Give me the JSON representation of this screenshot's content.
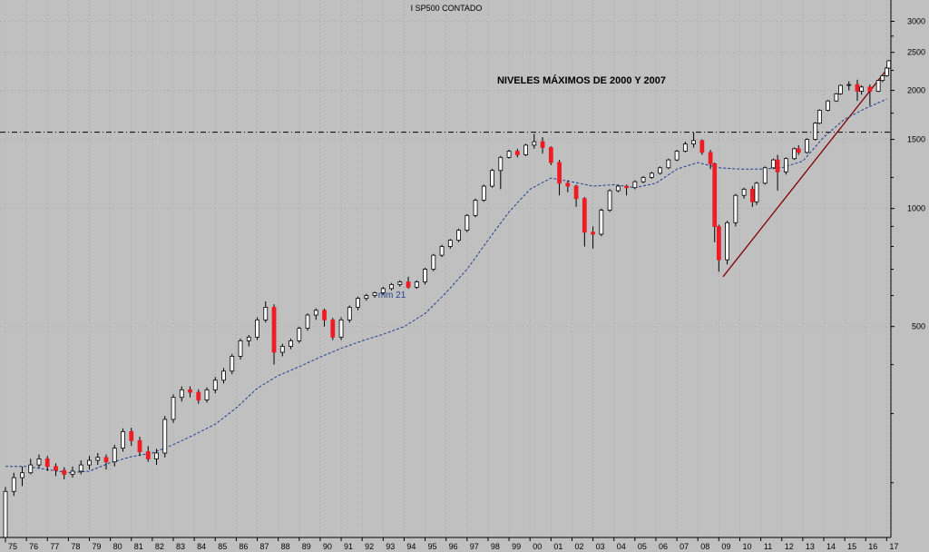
{
  "chart_data": {
    "type": "candlestick",
    "title": "I SP500 CONTADO",
    "y_scale": "log",
    "ylim": [
      145,
      3400
    ],
    "y_ticks": [
      500,
      1000,
      1500,
      2000,
      2500,
      3000
    ],
    "x_ticks": [
      "75",
      "76",
      "77",
      "78",
      "79",
      "80",
      "81",
      "82",
      "83",
      "84",
      "85",
      "86",
      "87",
      "88",
      "89",
      "90",
      "91",
      "92",
      "93",
      "94",
      "95",
      "96",
      "97",
      "98",
      "99",
      "00",
      "01",
      "02",
      "03",
      "04",
      "05",
      "06",
      "07",
      "08",
      "09",
      "10",
      "11",
      "12",
      "13",
      "14",
      "15",
      "16",
      "17"
    ],
    "x_range": [
      1975,
      2017.2
    ],
    "grid": "dotted",
    "annotations": {
      "max_level_label": "NIVELES MÁXIMOS DE 2000 Y 2007",
      "max_level_value": 1565,
      "moving_average_label": "mm 21"
    },
    "trendline": {
      "from": [
        2009.2,
        670
      ],
      "to": [
        2017.2,
        2330
      ]
    },
    "series": [
      {
        "name": "mm 21",
        "style": "dashed",
        "color": "#1f3f8f",
        "points": [
          [
            1975,
            220
          ],
          [
            1976,
            220
          ],
          [
            1977,
            216
          ],
          [
            1978,
            212
          ],
          [
            1979,
            214
          ],
          [
            1980,
            225
          ],
          [
            1981,
            233
          ],
          [
            1982,
            238
          ],
          [
            1983,
            250
          ],
          [
            1984,
            265
          ],
          [
            1985,
            282
          ],
          [
            1986,
            310
          ],
          [
            1987,
            348
          ],
          [
            1988,
            375
          ],
          [
            1989,
            395
          ],
          [
            1990,
            418
          ],
          [
            1991,
            440
          ],
          [
            1992,
            460
          ],
          [
            1993,
            478
          ],
          [
            1994,
            500
          ],
          [
            1995,
            540
          ],
          [
            1996,
            610
          ],
          [
            1997,
            700
          ],
          [
            1998,
            830
          ],
          [
            1999,
            980
          ],
          [
            2000,
            1120
          ],
          [
            2001,
            1195
          ],
          [
            2002,
            1170
          ],
          [
            2003,
            1140
          ],
          [
            2004,
            1150
          ],
          [
            2005,
            1130
          ],
          [
            2006,
            1160
          ],
          [
            2007,
            1260
          ],
          [
            2008,
            1310
          ],
          [
            2009,
            1270
          ],
          [
            2010,
            1260
          ],
          [
            2011,
            1260
          ],
          [
            2012,
            1270
          ],
          [
            2013,
            1320
          ],
          [
            2014,
            1520
          ],
          [
            2015,
            1690
          ],
          [
            2016,
            1800
          ],
          [
            2017,
            1900
          ]
        ]
      },
      {
        "name": "SP500",
        "type": "candlestick",
        "candles": [
          [
            1975.0,
            145,
            190,
            141,
            195
          ],
          [
            1975.4,
            190,
            206,
            185,
            212
          ],
          [
            1975.8,
            206,
            212,
            196,
            220
          ],
          [
            1976.2,
            212,
            222,
            210,
            230
          ],
          [
            1976.6,
            222,
            230,
            218,
            236
          ],
          [
            1977.0,
            230,
            220,
            214,
            234
          ],
          [
            1977.4,
            220,
            215,
            208,
            224
          ],
          [
            1977.8,
            215,
            210,
            204,
            219
          ],
          [
            1978.2,
            210,
            214,
            206,
            220
          ],
          [
            1978.6,
            214,
            222,
            210,
            228
          ],
          [
            1979.0,
            222,
            228,
            216,
            234
          ],
          [
            1979.4,
            228,
            232,
            222,
            238
          ],
          [
            1979.8,
            232,
            226,
            216,
            236
          ],
          [
            1980.2,
            226,
            245,
            220,
            250
          ],
          [
            1980.6,
            245,
            270,
            240,
            275
          ],
          [
            1981.0,
            270,
            256,
            248,
            276
          ],
          [
            1981.4,
            256,
            240,
            234,
            262
          ],
          [
            1981.8,
            240,
            230,
            226,
            248
          ],
          [
            1982.2,
            230,
            238,
            222,
            244
          ],
          [
            1982.6,
            238,
            290,
            232,
            296
          ],
          [
            1983.0,
            290,
            330,
            284,
            336
          ],
          [
            1983.4,
            330,
            345,
            322,
            352
          ],
          [
            1983.8,
            345,
            340,
            330,
            352
          ],
          [
            1984.2,
            340,
            325,
            318,
            346
          ],
          [
            1984.6,
            325,
            345,
            320,
            350
          ],
          [
            1985.0,
            345,
            365,
            338,
            372
          ],
          [
            1985.4,
            365,
            385,
            358,
            392
          ],
          [
            1985.8,
            385,
            420,
            378,
            426
          ],
          [
            1986.2,
            420,
            460,
            412,
            466
          ],
          [
            1986.6,
            460,
            470,
            445,
            476
          ],
          [
            1987.0,
            470,
            520,
            462,
            528
          ],
          [
            1987.4,
            520,
            560,
            512,
            580
          ],
          [
            1987.8,
            560,
            430,
            400,
            570
          ],
          [
            1988.2,
            430,
            445,
            420,
            452
          ],
          [
            1988.6,
            445,
            460,
            438,
            466
          ],
          [
            1989.0,
            460,
            495,
            454,
            500
          ],
          [
            1989.4,
            495,
            535,
            488,
            540
          ],
          [
            1989.8,
            535,
            550,
            520,
            556
          ],
          [
            1990.2,
            550,
            520,
            500,
            556
          ],
          [
            1990.6,
            520,
            470,
            462,
            526
          ],
          [
            1991.0,
            470,
            520,
            462,
            528
          ],
          [
            1991.4,
            520,
            560,
            512,
            566
          ],
          [
            1991.8,
            560,
            590,
            550,
            596
          ],
          [
            1992.2,
            590,
            600,
            582,
            606
          ],
          [
            1992.6,
            600,
            610,
            592,
            614
          ],
          [
            1993.0,
            610,
            625,
            602,
            632
          ],
          [
            1993.4,
            625,
            640,
            618,
            646
          ],
          [
            1993.8,
            640,
            650,
            632,
            656
          ],
          [
            1994.2,
            650,
            630,
            624,
            670
          ],
          [
            1994.6,
            630,
            650,
            624,
            656
          ],
          [
            1995.0,
            650,
            700,
            640,
            706
          ],
          [
            1995.4,
            700,
            760,
            692,
            766
          ],
          [
            1995.8,
            760,
            800,
            752,
            808
          ],
          [
            1996.2,
            800,
            830,
            790,
            836
          ],
          [
            1996.6,
            830,
            880,
            820,
            888
          ],
          [
            1997.0,
            880,
            960,
            870,
            968
          ],
          [
            1997.4,
            960,
            1050,
            950,
            1060
          ],
          [
            1997.8,
            1050,
            1140,
            1040,
            1150
          ],
          [
            1998.2,
            1140,
            1250,
            1130,
            1262
          ],
          [
            1998.6,
            1250,
            1350,
            1120,
            1362
          ],
          [
            1999.0,
            1350,
            1400,
            1340,
            1412
          ],
          [
            1999.4,
            1400,
            1370,
            1350,
            1420
          ],
          [
            1999.8,
            1370,
            1450,
            1360,
            1462
          ],
          [
            2000.2,
            1450,
            1480,
            1420,
            1550
          ],
          [
            2000.6,
            1480,
            1430,
            1380,
            1520
          ],
          [
            2001.0,
            1430,
            1310,
            1290,
            1440
          ],
          [
            2001.4,
            1310,
            1160,
            1080,
            1330
          ],
          [
            2001.8,
            1160,
            1140,
            1100,
            1180
          ],
          [
            2002.2,
            1140,
            1060,
            1010,
            1150
          ],
          [
            2002.6,
            1060,
            870,
            800,
            1070
          ],
          [
            2003.0,
            870,
            860,
            790,
            900
          ],
          [
            2003.4,
            860,
            990,
            850,
            1000
          ],
          [
            2003.8,
            990,
            1110,
            980,
            1120
          ],
          [
            2004.2,
            1110,
            1140,
            1100,
            1150
          ],
          [
            2004.6,
            1140,
            1130,
            1080,
            1150
          ],
          [
            2005.0,
            1130,
            1170,
            1120,
            1180
          ],
          [
            2005.4,
            1170,
            1200,
            1160,
            1210
          ],
          [
            2005.8,
            1200,
            1230,
            1190,
            1240
          ],
          [
            2006.2,
            1230,
            1270,
            1220,
            1280
          ],
          [
            2006.6,
            1270,
            1330,
            1260,
            1340
          ],
          [
            2007.0,
            1330,
            1400,
            1320,
            1410
          ],
          [
            2007.4,
            1400,
            1460,
            1390,
            1480
          ],
          [
            2007.8,
            1460,
            1490,
            1430,
            1565
          ],
          [
            2008.2,
            1490,
            1390,
            1370,
            1500
          ],
          [
            2008.6,
            1390,
            1300,
            1260,
            1410
          ],
          [
            2008.8,
            1300,
            900,
            820,
            1310
          ],
          [
            2009.0,
            900,
            740,
            690,
            910
          ],
          [
            2009.4,
            740,
            920,
            720,
            930
          ],
          [
            2009.8,
            920,
            1080,
            900,
            1090
          ],
          [
            2010.2,
            1080,
            1120,
            1060,
            1130
          ],
          [
            2010.6,
            1120,
            1040,
            1010,
            1140
          ],
          [
            2010.8,
            1040,
            1160,
            1020,
            1170
          ],
          [
            2011.2,
            1160,
            1270,
            1150,
            1280
          ],
          [
            2011.6,
            1270,
            1330,
            1260,
            1340
          ],
          [
            2011.8,
            1330,
            1240,
            1110,
            1370
          ],
          [
            2012.2,
            1240,
            1340,
            1220,
            1350
          ],
          [
            2012.6,
            1340,
            1420,
            1330,
            1430
          ],
          [
            2012.8,
            1420,
            1390,
            1370,
            1450
          ],
          [
            2013.2,
            1390,
            1500,
            1380,
            1510
          ],
          [
            2013.6,
            1500,
            1650,
            1490,
            1660
          ],
          [
            2013.8,
            1650,
            1780,
            1640,
            1790
          ],
          [
            2014.2,
            1780,
            1880,
            1770,
            1890
          ],
          [
            2014.6,
            1880,
            1960,
            1870,
            1970
          ],
          [
            2014.8,
            1960,
            2060,
            1950,
            2070
          ],
          [
            2015.2,
            2060,
            2070,
            2000,
            2110
          ],
          [
            2015.6,
            2070,
            1990,
            1880,
            2130
          ],
          [
            2015.8,
            1990,
            2040,
            1950,
            2060
          ],
          [
            2016.2,
            2040,
            1990,
            1830,
            2070
          ],
          [
            2016.6,
            1990,
            2120,
            1980,
            2130
          ],
          [
            2016.8,
            2120,
            2180,
            2100,
            2190
          ],
          [
            2017.0,
            2180,
            2280,
            2170,
            2300
          ],
          [
            2017.1,
            2280,
            2380,
            2270,
            2390
          ]
        ]
      }
    ],
    "colors": {
      "background": "#c0c0c0",
      "candle_up": "#ffffff",
      "candle_down": "#ee1c24",
      "wick": "#000000",
      "trendline": "#800000",
      "ma": "#1f3f8f"
    }
  }
}
